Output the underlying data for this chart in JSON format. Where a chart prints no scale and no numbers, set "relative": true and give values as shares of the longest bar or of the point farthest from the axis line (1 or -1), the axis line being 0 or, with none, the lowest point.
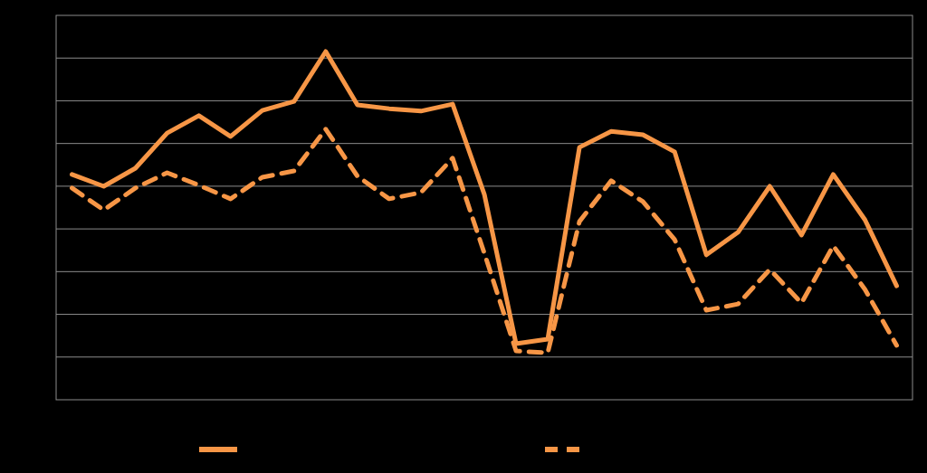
{
  "chart_data": {
    "type": "line",
    "relative": true,
    "categories": [
      null,
      null,
      null,
      null,
      null,
      null,
      null,
      null,
      null,
      null,
      null,
      null,
      null,
      null,
      null,
      null,
      null,
      null,
      null,
      null,
      null,
      null,
      null,
      null,
      null,
      null,
      null
    ],
    "series": [
      {
        "color": "#f79646",
        "line_style": "solid",
        "values": [
          0.647,
          0.613,
          0.665,
          0.766,
          0.816,
          0.756,
          0.831,
          0.857,
          1,
          0.847,
          0.836,
          0.829,
          0.849,
          0.59,
          0.161,
          0.174,
          0.725,
          0.771,
          0.761,
          0.712,
          0.416,
          0.481,
          0.613,
          0.473,
          0.647,
          0.517,
          0.327
        ]
      },
      {
        "color": "#f79646",
        "line_style": "dashed",
        "values": [
          0.608,
          0.545,
          0.608,
          0.652,
          0.616,
          0.577,
          0.639,
          0.657,
          0.777,
          0.642,
          0.577,
          0.595,
          0.694,
          0.421,
          0.14,
          0.135,
          0.512,
          0.629,
          0.569,
          0.46,
          0.257,
          0.275,
          0.374,
          0.278,
          0.442,
          0.317,
          0.156
        ]
      }
    ],
    "grid": "y",
    "marker": "none"
  }
}
